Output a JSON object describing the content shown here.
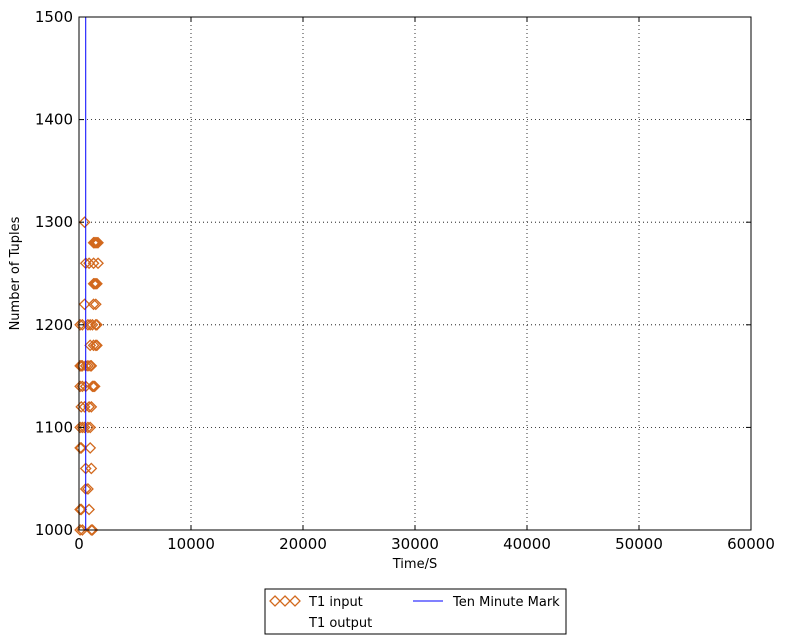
{
  "chart_data": {
    "type": "scatter",
    "title": "",
    "xlabel": "Time/S",
    "ylabel": "Number of Tuples",
    "xlim": [
      0,
      60000
    ],
    "ylim": [
      1000,
      1500
    ],
    "xticks": [
      "0",
      "10000",
      "20000",
      "30000",
      "40000",
      "50000",
      "60000"
    ],
    "yticks": [
      "1000",
      "1100",
      "1200",
      "1300",
      "1400",
      "1500"
    ],
    "grid": true,
    "legend_position": "below",
    "series": [
      {
        "name": "T1 input",
        "marker": "diamond",
        "color": "#d2691e",
        "points": [
          [
            100,
            1000
          ],
          [
            300,
            1000
          ],
          [
            1100,
            1000
          ],
          [
            1200,
            1000
          ],
          [
            100,
            1020
          ],
          [
            200,
            1020
          ],
          [
            900,
            1020
          ],
          [
            600,
            1040
          ],
          [
            800,
            1040
          ],
          [
            600,
            1060
          ],
          [
            1100,
            1060
          ],
          [
            100,
            1080
          ],
          [
            200,
            1080
          ],
          [
            1000,
            1080
          ],
          [
            100,
            1100
          ],
          [
            300,
            1100
          ],
          [
            500,
            1100
          ],
          [
            800,
            1100
          ],
          [
            1000,
            1100
          ],
          [
            200,
            1120
          ],
          [
            500,
            1120
          ],
          [
            900,
            1120
          ],
          [
            1100,
            1120
          ],
          [
            100,
            1140
          ],
          [
            300,
            1140
          ],
          [
            600,
            1140
          ],
          [
            1200,
            1140
          ],
          [
            1300,
            1140
          ],
          [
            1400,
            1140
          ],
          [
            100,
            1160
          ],
          [
            200,
            1160
          ],
          [
            300,
            1160
          ],
          [
            600,
            1160
          ],
          [
            800,
            1160
          ],
          [
            1000,
            1160
          ],
          [
            1100,
            1160
          ],
          [
            1000,
            1180
          ],
          [
            1300,
            1180
          ],
          [
            1500,
            1180
          ],
          [
            1600,
            1180
          ],
          [
            100,
            1200
          ],
          [
            300,
            1200
          ],
          [
            800,
            1200
          ],
          [
            1000,
            1200
          ],
          [
            1200,
            1200
          ],
          [
            1500,
            1200
          ],
          [
            1600,
            1200
          ],
          [
            500,
            1220
          ],
          [
            1300,
            1220
          ],
          [
            1500,
            1220
          ],
          [
            1300,
            1240
          ],
          [
            1400,
            1240
          ],
          [
            1500,
            1240
          ],
          [
            1600,
            1240
          ],
          [
            600,
            1260
          ],
          [
            900,
            1260
          ],
          [
            1300,
            1260
          ],
          [
            1700,
            1260
          ],
          [
            1300,
            1280
          ],
          [
            1400,
            1280
          ],
          [
            1500,
            1280
          ],
          [
            1600,
            1280
          ],
          [
            1700,
            1280
          ],
          [
            500,
            1300
          ]
        ]
      },
      {
        "name": "T1 output",
        "marker": "none",
        "color": "#d2691e",
        "points": []
      },
      {
        "name": "Ten Minute Mark",
        "type": "vline",
        "color": "#0000ff",
        "x": 600
      }
    ]
  }
}
